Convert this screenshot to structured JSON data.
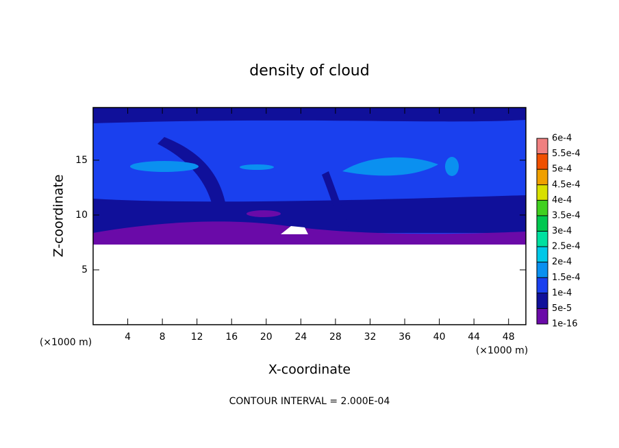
{
  "chart_data": {
    "type": "contour",
    "title": "density of cloud",
    "xlabel": "X-coordinate",
    "ylabel": "Z-coordinate",
    "y_unit_label": "(×1000 m)",
    "x_unit_label": "(×1000 m)",
    "footnote": "CONTOUR INTERVAL = 2.000E-04",
    "xlim": [
      0,
      50
    ],
    "ylim": [
      0,
      19.8
    ],
    "xticks": [
      4,
      8,
      12,
      16,
      20,
      24,
      28,
      32,
      36,
      40,
      44,
      48
    ],
    "yticks": [
      5,
      10,
      15
    ],
    "colorbar": {
      "levels": [
        {
          "value": 1e-16,
          "label": "1e-16"
        },
        {
          "value": 5e-05,
          "label": "5e-5"
        },
        {
          "value": 0.0001,
          "label": "1e-4"
        },
        {
          "value": 0.00015,
          "label": "1.5e-4"
        },
        {
          "value": 0.0002,
          "label": "2e-4"
        },
        {
          "value": 0.00025,
          "label": "2.5e-4"
        },
        {
          "value": 0.0003,
          "label": "3e-4"
        },
        {
          "value": 0.00035,
          "label": "3.5e-4"
        },
        {
          "value": 0.0004,
          "label": "4e-4"
        },
        {
          "value": 0.00045,
          "label": "4.5e-4"
        },
        {
          "value": 0.0005,
          "label": "5e-4"
        },
        {
          "value": 0.00055,
          "label": "5.5e-4"
        },
        {
          "value": 0.0006,
          "label": "6e-4"
        }
      ],
      "colors": [
        "#6a0aa8",
        "#10109a",
        "#1a40ee",
        "#0a90f0",
        "#00c8e8",
        "#00e0a0",
        "#00c850",
        "#40d020",
        "#d8e000",
        "#f0a000",
        "#f05000",
        "#f08080"
      ]
    }
  }
}
